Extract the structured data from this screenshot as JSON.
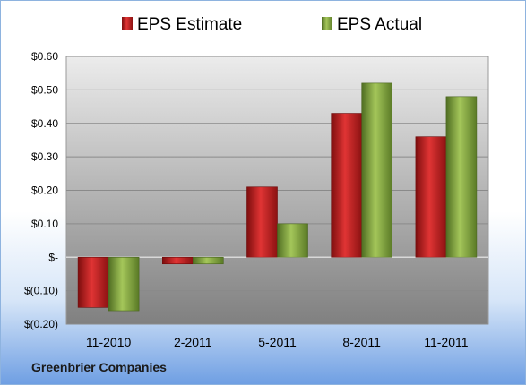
{
  "footer": {
    "company": "Greenbrier Companies"
  },
  "colors": {
    "estimate": "#c01b1b",
    "actual": "#7fa13c"
  },
  "chart_data": {
    "type": "bar",
    "categories": [
      "11-2010",
      "2-2011",
      "5-2011",
      "8-2011",
      "11-2011"
    ],
    "series": [
      {
        "name": "EPS Estimate",
        "values": [
          -0.15,
          -0.02,
          0.21,
          0.43,
          0.36
        ]
      },
      {
        "name": "EPS Actual",
        "values": [
          -0.16,
          -0.02,
          0.1,
          0.52,
          0.48
        ]
      }
    ],
    "yticks": [
      0.6,
      0.5,
      0.4,
      0.3,
      0.2,
      0.1,
      0,
      -0.1,
      -0.2
    ],
    "ytick_labels": [
      "$0.60",
      "$0.50",
      "$0.40",
      "$0.30",
      "$0.20",
      "$0.10",
      "$-",
      "$(0.10)",
      "$(0.20)"
    ],
    "ylim": [
      -0.2,
      0.6
    ],
    "legend_position": "top-center",
    "grid": true
  }
}
